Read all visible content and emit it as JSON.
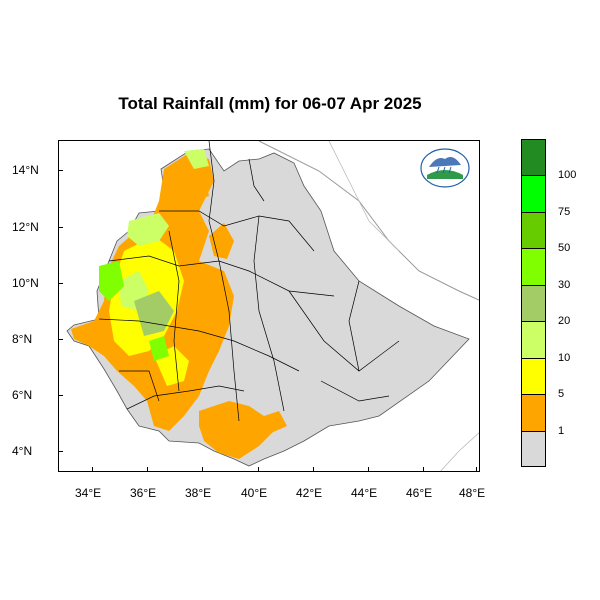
{
  "title": "Total Rainfall (mm) for 06-07 Apr 2025",
  "map": {
    "x_ticks": [
      "34°E",
      "36°E",
      "38°E",
      "40°E",
      "42°E",
      "44°E",
      "46°E",
      "48°E"
    ],
    "y_ticks": [
      "14°N",
      "12°N",
      "10°N",
      "8°N",
      "6°N",
      "4°N"
    ]
  },
  "legend": {
    "labels": [
      "1",
      "5",
      "10",
      "20",
      "30",
      "50",
      "75",
      "100"
    ],
    "colors": [
      "#d9d9d9",
      "#ffa500",
      "#ffff00",
      "#ccff66",
      "#a3cc66",
      "#7fff00",
      "#66cc00",
      "#00ff00",
      "#228b22"
    ]
  },
  "logo": {
    "icon": "ethiopian-meteorology-institute-logo"
  }
}
